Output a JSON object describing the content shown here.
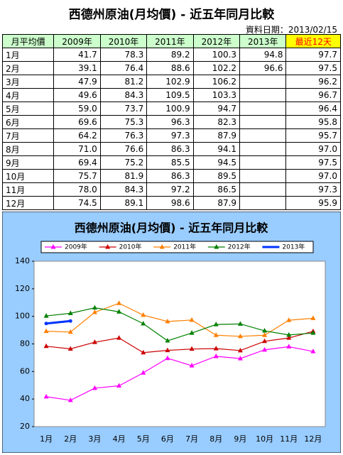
{
  "title": "西德州原油(月均價) - 近五年同月比較",
  "date_label": "資料日期：2013/02/15",
  "table": {
    "header": [
      "月平均價",
      "2009年",
      "2010年",
      "2011年",
      "2012年",
      "2013年",
      "最近12天"
    ],
    "rows": [
      [
        "1月",
        "41.7",
        "78.3",
        "89.2",
        "100.3",
        "94.8",
        "97.7"
      ],
      [
        "2月",
        "39.1",
        "76.4",
        "88.6",
        "102.2",
        "96.6",
        "97.5"
      ],
      [
        "3月",
        "47.9",
        "81.2",
        "102.9",
        "106.2",
        null,
        "96.2"
      ],
      [
        "4月",
        "49.6",
        "84.3",
        "109.5",
        "103.3",
        null,
        "96.7"
      ],
      [
        "5月",
        "59.0",
        "73.7",
        "100.9",
        "94.7",
        null,
        "96.4"
      ],
      [
        "6月",
        "69.6",
        "75.3",
        "96.3",
        "82.3",
        null,
        "95.8"
      ],
      [
        "7月",
        "64.2",
        "76.3",
        "97.3",
        "87.9",
        null,
        "95.7"
      ],
      [
        "8月",
        "71.0",
        "76.6",
        "86.3",
        "94.1",
        null,
        "97.0"
      ],
      [
        "9月",
        "69.4",
        "75.2",
        "85.5",
        "94.5",
        null,
        "97.5"
      ],
      [
        "10月",
        "75.7",
        "81.9",
        "86.3",
        "89.5",
        null,
        "97.0"
      ],
      [
        "11月",
        "78.0",
        "84.3",
        "97.2",
        "86.5",
        null,
        "97.3"
      ],
      [
        "12月",
        "74.5",
        "89.1",
        "98.6",
        "87.9",
        null,
        "95.9"
      ]
    ]
  },
  "chart_data": {
    "type": "line",
    "title": "西德州原油(月均價) - 近五年同月比較",
    "categories": [
      "1月",
      "2月",
      "3月",
      "4月",
      "5月",
      "6月",
      "7月",
      "8月",
      "9月",
      "10月",
      "11月",
      "12月"
    ],
    "series": [
      {
        "name": "2009年",
        "color": "#ff00ff",
        "values": [
          41.7,
          39.1,
          47.9,
          49.6,
          59.0,
          69.6,
          64.2,
          71.0,
          69.4,
          75.7,
          78.0,
          74.5
        ]
      },
      {
        "name": "2010年",
        "color": "#cc0000",
        "values": [
          78.3,
          76.4,
          81.2,
          84.3,
          73.7,
          75.3,
          76.3,
          76.6,
          75.2,
          81.9,
          84.3,
          89.1
        ]
      },
      {
        "name": "2011年",
        "color": "#ff8000",
        "values": [
          89.2,
          88.6,
          102.9,
          109.5,
          100.9,
          96.3,
          97.3,
          86.3,
          85.5,
          86.3,
          97.2,
          98.6
        ]
      },
      {
        "name": "2012年",
        "color": "#008000",
        "values": [
          100.3,
          102.2,
          106.2,
          103.3,
          94.7,
          82.3,
          87.9,
          94.1,
          94.5,
          89.5,
          86.5,
          87.9
        ]
      },
      {
        "name": "2013年",
        "color": "#0033ff",
        "values": [
          94.8,
          96.6,
          null,
          null,
          null,
          null,
          null,
          null,
          null,
          null,
          null,
          null
        ]
      }
    ],
    "ylim": [
      20,
      140
    ],
    "yticks": [
      20,
      40,
      60,
      80,
      100,
      120,
      140
    ],
    "grid": false
  }
}
